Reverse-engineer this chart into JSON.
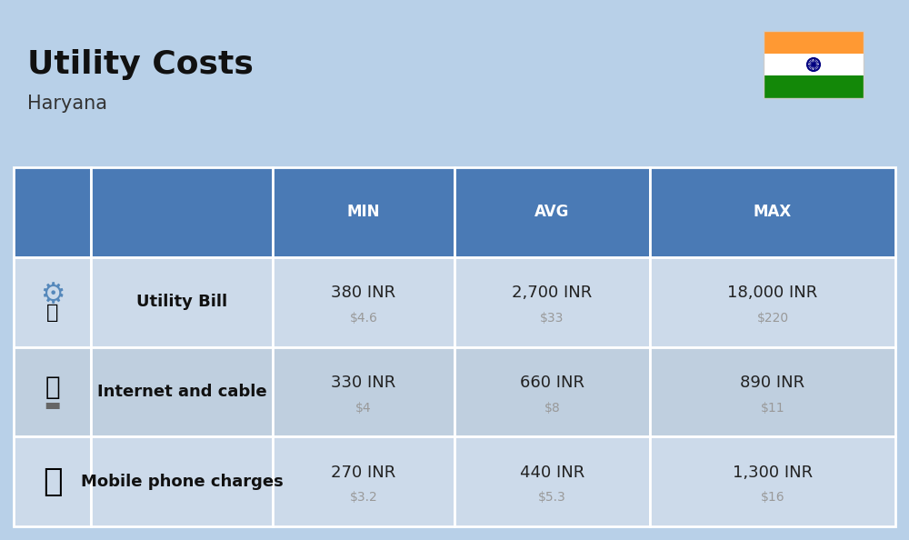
{
  "title": "Utility Costs",
  "subtitle": "Haryana",
  "background_color": "#b8d0e8",
  "header_bg_color": "#4a7ab5",
  "header_text_color": "#ffffff",
  "row_bg_color_odd": "#ccdaea",
  "row_bg_color_even": "#bfcfdf",
  "cell_border_color": "#ffffff",
  "headers": [
    "MIN",
    "AVG",
    "MAX"
  ],
  "rows": [
    {
      "label": "Utility Bill",
      "min_inr": "380 INR",
      "min_usd": "$4.6",
      "avg_inr": "2,700 INR",
      "avg_usd": "$33",
      "max_inr": "18,000 INR",
      "max_usd": "$220"
    },
    {
      "label": "Internet and cable",
      "min_inr": "330 INR",
      "min_usd": "$4",
      "avg_inr": "660 INR",
      "avg_usd": "$8",
      "max_inr": "890 INR",
      "max_usd": "$11"
    },
    {
      "label": "Mobile phone charges",
      "min_inr": "270 INR",
      "min_usd": "$3.2",
      "avg_inr": "440 INR",
      "avg_usd": "$5.3",
      "max_inr": "1,300 INR",
      "max_usd": "$16"
    }
  ],
  "flag_colors": [
    "#FF9933",
    "#FFFFFF",
    "#138808"
  ],
  "flag_chakra_color": "#000080",
  "title_fontsize": 26,
  "subtitle_fontsize": 15,
  "header_fontsize": 12,
  "label_fontsize": 13,
  "value_fontsize": 13,
  "usd_fontsize": 10,
  "usd_color": "#999999",
  "label_color": "#111111",
  "value_color": "#222222"
}
